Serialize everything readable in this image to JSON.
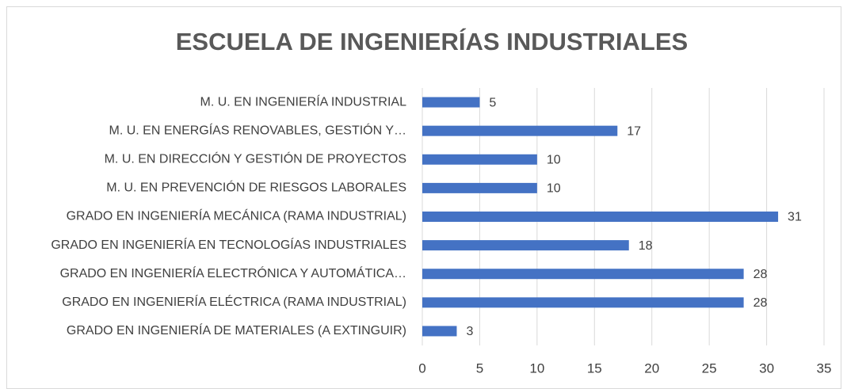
{
  "chart_data": {
    "type": "bar",
    "orientation": "horizontal",
    "title": "ESCUELA DE INGENIERÍAS INDUSTRIALES",
    "categories": [
      "M. U. EN INGENIERÍA INDUSTRIAL",
      "M. U. EN ENERGÍAS RENOVABLES, GESTIÓN Y…",
      "M. U. EN DIRECCIÓN Y GESTIÓN DE PROYECTOS",
      "M. U. EN PREVENCIÓN DE RIESGOS LABORALES",
      "GRADO EN INGENIERÍA MECÁNICA (RAMA INDUSTRIAL)",
      "GRADO EN INGENIERÍA EN TECNOLOGÍAS INDUSTRIALES",
      "GRADO EN INGENIERÍA ELECTRÓNICA Y AUTOMÁTICA…",
      "GRADO EN INGENIERÍA ELÉCTRICA (RAMA INDUSTRIAL)",
      "GRADO EN INGENIERÍA DE MATERIALES (A EXTINGUIR)"
    ],
    "values": [
      5,
      17,
      10,
      10,
      31,
      18,
      28,
      28,
      3
    ],
    "color": "#4472c4",
    "xlim": [
      0,
      35
    ],
    "xticks": [
      0,
      5,
      10,
      15,
      20,
      25,
      30,
      35
    ],
    "grid": true
  }
}
